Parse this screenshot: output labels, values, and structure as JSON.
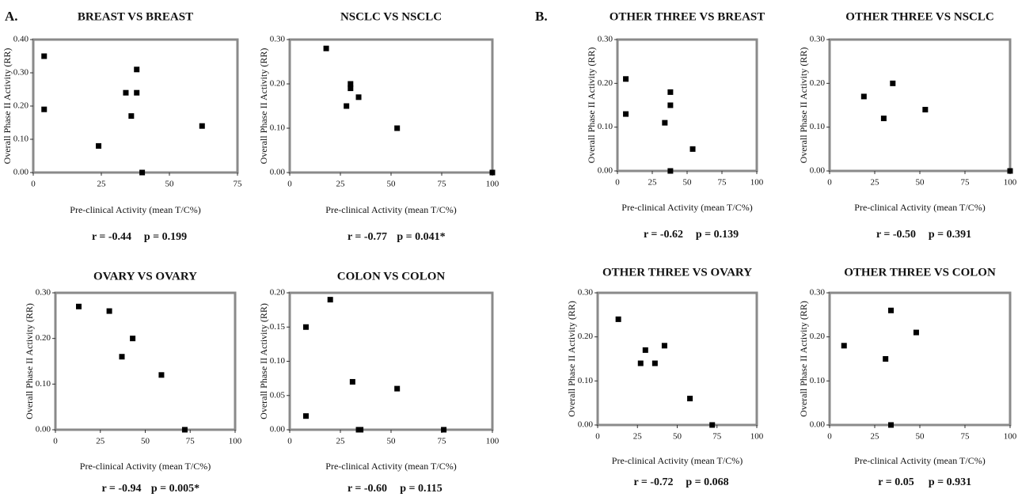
{
  "panel_labels": [
    "A.",
    "B."
  ],
  "chart_data": [
    {
      "type": "scatter",
      "title": "BREAST VS BREAST",
      "x_label": "Pre-clinical Activity (mean T/C%)",
      "y_label": "Overall Phase II Activity (RR)",
      "x": [
        4,
        4,
        24,
        34,
        38,
        38,
        36,
        40,
        62
      ],
      "values": [
        0.35,
        0.19,
        0.08,
        0.24,
        0.24,
        0.31,
        0.17,
        0,
        0.14
      ],
      "xlim": [
        0,
        75
      ],
      "xticks": [
        0,
        25,
        50,
        75
      ],
      "ylim": [
        0,
        0.4
      ],
      "yticks": [
        {
          "value": 0,
          "label": "0.00"
        },
        {
          "value": 0.1,
          "label": "0.10"
        },
        {
          "value": 0.2,
          "label": "0.20"
        },
        {
          "value": 0.3,
          "label": "0.30"
        },
        {
          "value": 0.4,
          "label": "0.40"
        }
      ],
      "annotations": [
        "r = -0.44",
        "p = 0.199"
      ],
      "color": "#000000"
    },
    {
      "type": "scatter",
      "title": "NSCLC VS NSCLC",
      "x_label": "Pre-clinical Activity (mean T/C%)",
      "y_label": "Overall Phase II Activity (RR)",
      "x": [
        18,
        28,
        30,
        30,
        34,
        53,
        100
      ],
      "values": [
        0.28,
        0.15,
        0.2,
        0.19,
        0.17,
        0.1,
        0
      ],
      "xlim": [
        0,
        100
      ],
      "xticks": [
        0,
        25,
        50,
        75,
        100
      ],
      "ylim": [
        0,
        0.3
      ],
      "yticks": [
        {
          "value": 0,
          "label": "0.00"
        },
        {
          "value": 0.1,
          "label": "0.10"
        },
        {
          "value": 0.2,
          "label": "0.20"
        },
        {
          "value": 0.3,
          "label": "0.30"
        }
      ],
      "annotations": [
        "r = -0.77",
        "p = 0.041*"
      ],
      "color": "#000000"
    },
    {
      "type": "scatter",
      "title": "OVARY VS OVARY",
      "x_label": "Pre-clinical Activity (mean T/C%)",
      "y_label": "Overall Phase II Activity (RR)",
      "x": [
        13,
        30,
        43,
        37,
        59,
        72
      ],
      "values": [
        0.27,
        0.26,
        0.2,
        0.16,
        0.12,
        0
      ],
      "xlim": [
        0,
        100
      ],
      "xticks": [
        0,
        25,
        50,
        75,
        100
      ],
      "ylim": [
        0,
        0.3
      ],
      "yticks": [
        {
          "value": 0,
          "label": "0.00"
        },
        {
          "value": 0.1,
          "label": "0.10"
        },
        {
          "value": 0.2,
          "label": "0.20"
        },
        {
          "value": 0.3,
          "label": "0.30"
        }
      ],
      "annotations": [
        "r = -0.94",
        "p = 0.005*"
      ],
      "color": "#000000"
    },
    {
      "type": "scatter",
      "title": "COLON VS COLON",
      "x_label": "Pre-clinical Activity (mean T/C%)",
      "y_label": "Overall Phase II Activity (RR)",
      "x": [
        8,
        8,
        20,
        31,
        34,
        35,
        53,
        76
      ],
      "values": [
        0.15,
        0.02,
        0.19,
        0.07,
        0,
        0,
        0.06,
        0
      ],
      "xlim": [
        0,
        100
      ],
      "xticks": [
        0,
        25,
        50,
        75,
        100
      ],
      "ylim": [
        0,
        0.2
      ],
      "yticks": [
        {
          "value": 0,
          "label": "0.00"
        },
        {
          "value": 0.05,
          "label": "0.05"
        },
        {
          "value": 0.1,
          "label": "0.10"
        },
        {
          "value": 0.15,
          "label": "0.15"
        },
        {
          "value": 0.2,
          "label": "0.20"
        }
      ],
      "annotations": [
        "r = -0.60",
        "p = 0.115"
      ],
      "color": "#000000"
    },
    {
      "type": "scatter",
      "title": "OTHER THREE VS BREAST",
      "x_label": "Pre-clinical Activity (mean T/C%)",
      "y_label": "Overall Phase II Activity (RR)",
      "x": [
        6,
        6,
        34,
        38,
        38,
        38,
        54
      ],
      "values": [
        0.21,
        0.13,
        0.11,
        0.18,
        0.15,
        0,
        0.05
      ],
      "xlim": [
        0,
        100
      ],
      "xticks": [
        0,
        25,
        50,
        75,
        100
      ],
      "ylim": [
        0,
        0.3
      ],
      "yticks": [
        {
          "value": 0,
          "label": "0.00"
        },
        {
          "value": 0.1,
          "label": "0.10"
        },
        {
          "value": 0.2,
          "label": "0.20"
        },
        {
          "value": 0.3,
          "label": "0.30"
        }
      ],
      "annotations": [
        "r = -0.62",
        "p = 0.139"
      ],
      "color": "#000000"
    },
    {
      "type": "scatter",
      "title": "OTHER THREE VS NSCLC",
      "x_label": "Pre-clinical Activity (mean T/C%)",
      "y_label": "Overall Phase II Activity (RR)",
      "x": [
        19,
        30,
        35,
        53,
        100
      ],
      "values": [
        0.17,
        0.12,
        0.2,
        0.14,
        0
      ],
      "xlim": [
        0,
        100
      ],
      "xticks": [
        0,
        25,
        50,
        75,
        100
      ],
      "ylim": [
        0,
        0.3
      ],
      "yticks": [
        {
          "value": 0,
          "label": "0.00"
        },
        {
          "value": 0.1,
          "label": "0.10"
        },
        {
          "value": 0.2,
          "label": "0.20"
        },
        {
          "value": 0.3,
          "label": "0.30"
        }
      ],
      "annotations": [
        "r = -0.50",
        "p = 0.391"
      ],
      "color": "#000000"
    },
    {
      "type": "scatter",
      "title": "OTHER THREE VS OVARY",
      "x_label": "Pre-clinical Activity (mean T/C%)",
      "y_label": "Overall Phase II Activity (RR)",
      "x": [
        13,
        27,
        30,
        36,
        42,
        58,
        72
      ],
      "values": [
        0.24,
        0.14,
        0.17,
        0.14,
        0.18,
        0.06,
        0
      ],
      "xlim": [
        0,
        100
      ],
      "xticks": [
        0,
        25,
        50,
        75,
        100
      ],
      "ylim": [
        0,
        0.3
      ],
      "yticks": [
        {
          "value": 0,
          "label": "0.00"
        },
        {
          "value": 0.1,
          "label": "0.10"
        },
        {
          "value": 0.2,
          "label": "0.20"
        },
        {
          "value": 0.3,
          "label": "0.30"
        }
      ],
      "annotations": [
        "r = -0.72",
        "p = 0.068"
      ],
      "color": "#000000"
    },
    {
      "type": "scatter",
      "title": "OTHER THREE VS COLON",
      "x_label": "Pre-clinical Activity (mean T/C%)",
      "y_label": "Overall Phase II Activity (RR)",
      "x": [
        8,
        31,
        34,
        34,
        48
      ],
      "values": [
        0.18,
        0.15,
        0.26,
        0,
        0.21
      ],
      "xlim": [
        0,
        100
      ],
      "xticks": [
        0,
        25,
        50,
        75,
        100
      ],
      "ylim": [
        0,
        0.3
      ],
      "yticks": [
        {
          "value": 0,
          "label": "0.00"
        },
        {
          "value": 0.1,
          "label": "0.10"
        },
        {
          "value": 0.2,
          "label": "0.20"
        },
        {
          "value": 0.3,
          "label": "0.30"
        }
      ],
      "annotations": [
        "r = 0.05",
        "p = 0.931"
      ],
      "color": "#000000"
    }
  ]
}
